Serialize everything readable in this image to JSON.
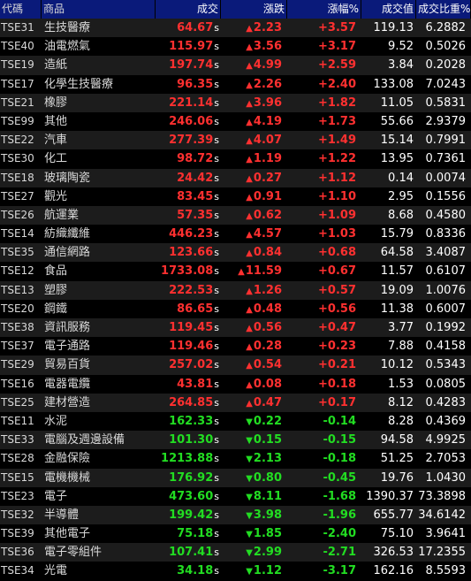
{
  "header": {
    "code": "代碼",
    "name": "商品",
    "price": "成交",
    "change": "漲跌",
    "change_pct": "漲幅%",
    "volume": "成交值",
    "volume_ratio": "成交比重%"
  },
  "colors": {
    "up": "#ff3030",
    "down": "#22dd22",
    "header_bg": "#0a1a7a"
  },
  "rows": [
    {
      "code": "TSE31",
      "name": "生技醫療",
      "price": "64.67",
      "flag": "s",
      "dir": "up",
      "change": "2.23",
      "change_pct": "+3.57",
      "volume": "119.13",
      "ratio": "6.2882"
    },
    {
      "code": "TSE40",
      "name": "油電燃氣",
      "price": "115.97",
      "flag": "s",
      "dir": "up",
      "change": "3.56",
      "change_pct": "+3.17",
      "volume": "9.52",
      "ratio": "0.5026"
    },
    {
      "code": "TSE19",
      "name": "造紙",
      "price": "197.74",
      "flag": "s",
      "dir": "up",
      "change": "4.99",
      "change_pct": "+2.59",
      "volume": "3.84",
      "ratio": "0.2028"
    },
    {
      "code": "TSE17",
      "name": "化學生技醫療",
      "price": "96.35",
      "flag": "s",
      "dir": "up",
      "change": "2.26",
      "change_pct": "+2.40",
      "volume": "133.08",
      "ratio": "7.0243"
    },
    {
      "code": "TSE21",
      "name": "橡膠",
      "price": "221.14",
      "flag": "s",
      "dir": "up",
      "change": "3.96",
      "change_pct": "+1.82",
      "volume": "11.05",
      "ratio": "0.5831"
    },
    {
      "code": "TSE99",
      "name": "其他",
      "price": "246.06",
      "flag": "s",
      "dir": "up",
      "change": "4.19",
      "change_pct": "+1.73",
      "volume": "55.66",
      "ratio": "2.9379"
    },
    {
      "code": "TSE22",
      "name": "汽車",
      "price": "277.39",
      "flag": "s",
      "dir": "up",
      "change": "4.07",
      "change_pct": "+1.49",
      "volume": "15.14",
      "ratio": "0.7991"
    },
    {
      "code": "TSE30",
      "name": "化工",
      "price": "98.72",
      "flag": "s",
      "dir": "up",
      "change": "1.19",
      "change_pct": "+1.22",
      "volume": "13.95",
      "ratio": "0.7361"
    },
    {
      "code": "TSE18",
      "name": "玻璃陶瓷",
      "price": "24.42",
      "flag": "s",
      "dir": "up",
      "change": "0.27",
      "change_pct": "+1.12",
      "volume": "0.14",
      "ratio": "0.0074"
    },
    {
      "code": "TSE27",
      "name": "觀光",
      "price": "83.45",
      "flag": "s",
      "dir": "up",
      "change": "0.91",
      "change_pct": "+1.10",
      "volume": "2.95",
      "ratio": "0.1556"
    },
    {
      "code": "TSE26",
      "name": "航運業",
      "price": "57.35",
      "flag": "s",
      "dir": "up",
      "change": "0.62",
      "change_pct": "+1.09",
      "volume": "8.68",
      "ratio": "0.4580"
    },
    {
      "code": "TSE14",
      "name": "紡織纖維",
      "price": "446.23",
      "flag": "s",
      "dir": "up",
      "change": "4.57",
      "change_pct": "+1.03",
      "volume": "15.79",
      "ratio": "0.8336"
    },
    {
      "code": "TSE35",
      "name": "通信網路",
      "price": "123.66",
      "flag": "s",
      "dir": "up",
      "change": "0.84",
      "change_pct": "+0.68",
      "volume": "64.58",
      "ratio": "3.4087"
    },
    {
      "code": "TSE12",
      "name": "食品",
      "price": "1733.08",
      "flag": "s",
      "dir": "up",
      "change": "11.59",
      "change_pct": "+0.67",
      "volume": "11.57",
      "ratio": "0.6107"
    },
    {
      "code": "TSE13",
      "name": "塑膠",
      "price": "222.53",
      "flag": "s",
      "dir": "up",
      "change": "1.26",
      "change_pct": "+0.57",
      "volume": "19.09",
      "ratio": "1.0076"
    },
    {
      "code": "TSE20",
      "name": "鋼鐵",
      "price": "86.65",
      "flag": "s",
      "dir": "up",
      "change": "0.48",
      "change_pct": "+0.56",
      "volume": "11.38",
      "ratio": "0.6007"
    },
    {
      "code": "TSE38",
      "name": "資訊服務",
      "price": "119.45",
      "flag": "s",
      "dir": "up",
      "change": "0.56",
      "change_pct": "+0.47",
      "volume": "3.77",
      "ratio": "0.1992"
    },
    {
      "code": "TSE37",
      "name": "電子通路",
      "price": "119.46",
      "flag": "s",
      "dir": "up",
      "change": "0.28",
      "change_pct": "+0.23",
      "volume": "7.88",
      "ratio": "0.4158"
    },
    {
      "code": "TSE29",
      "name": "貿易百貨",
      "price": "257.02",
      "flag": "s",
      "dir": "up",
      "change": "0.54",
      "change_pct": "+0.21",
      "volume": "10.12",
      "ratio": "0.5343"
    },
    {
      "code": "TSE16",
      "name": "電器電纜",
      "price": "43.81",
      "flag": "s",
      "dir": "up",
      "change": "0.08",
      "change_pct": "+0.18",
      "volume": "1.53",
      "ratio": "0.0805"
    },
    {
      "code": "TSE25",
      "name": "建材營造",
      "price": "264.85",
      "flag": "s",
      "dir": "up",
      "change": "0.47",
      "change_pct": "+0.17",
      "volume": "8.12",
      "ratio": "0.4283"
    },
    {
      "code": "TSE11",
      "name": "水泥",
      "price": "162.33",
      "flag": "s",
      "dir": "down",
      "change": "0.22",
      "change_pct": "-0.14",
      "volume": "8.28",
      "ratio": "0.4369"
    },
    {
      "code": "TSE33",
      "name": "電腦及週邊設備",
      "price": "101.30",
      "flag": "s",
      "dir": "down",
      "change": "0.15",
      "change_pct": "-0.15",
      "volume": "94.58",
      "ratio": "4.9925"
    },
    {
      "code": "TSE28",
      "name": "金融保險",
      "price": "1213.88",
      "flag": "s",
      "dir": "down",
      "change": "2.13",
      "change_pct": "-0.18",
      "volume": "51.25",
      "ratio": "2.7053"
    },
    {
      "code": "TSE15",
      "name": "電機機械",
      "price": "176.92",
      "flag": "s",
      "dir": "down",
      "change": "0.80",
      "change_pct": "-0.45",
      "volume": "19.76",
      "ratio": "1.0430"
    },
    {
      "code": "TSE23",
      "name": "電子",
      "price": "473.60",
      "flag": "s",
      "dir": "down",
      "change": "8.11",
      "change_pct": "-1.68",
      "volume": "1390.37",
      "ratio": "73.3898"
    },
    {
      "code": "TSE32",
      "name": "半導體",
      "price": "199.42",
      "flag": "s",
      "dir": "down",
      "change": "3.98",
      "change_pct": "-1.96",
      "volume": "655.77",
      "ratio": "34.6142"
    },
    {
      "code": "TSE39",
      "name": "其他電子",
      "price": "75.18",
      "flag": "s",
      "dir": "down",
      "change": "1.85",
      "change_pct": "-2.40",
      "volume": "75.10",
      "ratio": "3.9641"
    },
    {
      "code": "TSE36",
      "name": "電子零組件",
      "price": "107.41",
      "flag": "s",
      "dir": "down",
      "change": "2.99",
      "change_pct": "-2.71",
      "volume": "326.53",
      "ratio": "17.2355"
    },
    {
      "code": "TSE34",
      "name": "光電",
      "price": "34.18",
      "flag": "s",
      "dir": "down",
      "change": "1.12",
      "change_pct": "-3.17",
      "volume": "162.16",
      "ratio": "8.5593"
    }
  ]
}
